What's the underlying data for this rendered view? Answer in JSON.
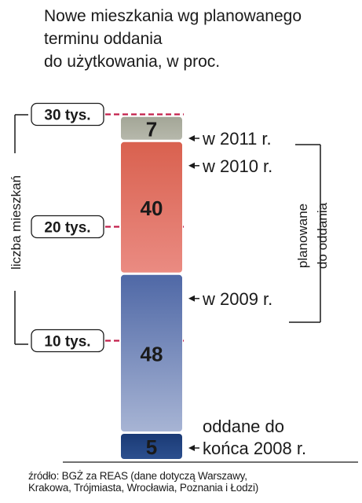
{
  "title": {
    "line1": "Nowe mieszkania wg planowanego",
    "line2": "terminu oddania",
    "line3": "do użytkowania, w proc."
  },
  "y_axis_label": "liczba mieszkań",
  "right_axis_label": {
    "line1": "planowane",
    "line2": "do oddania"
  },
  "source": {
    "line1": "źródło: BGŻ za REAS (dane dotyczą Warszawy,",
    "line2": "Krakowa, Trójmiasta, Wrocławia, Poznania i Łodzi)"
  },
  "chart_data": {
    "type": "bar",
    "stacked": true,
    "units": "proc.",
    "y_unit_label": "liczba mieszkań",
    "ylim": [
      0,
      32000
    ],
    "reference_lines": [
      {
        "value": 10000,
        "label": "10 tys."
      },
      {
        "value": 20000,
        "label": "20 tys."
      },
      {
        "value": 30000,
        "label": "30 tys."
      }
    ],
    "segments": [
      {
        "label": "oddane do końca 2008 r.",
        "value": 5,
        "color": "#1f3f7a"
      },
      {
        "label": "w 2009 r.",
        "value": 48,
        "color": "#5a72ad"
      },
      {
        "label": "w 2010 r.",
        "value": 40,
        "color": "#d96758"
      },
      {
        "label": "w 2011 r.",
        "value": 7,
        "color": "#a5a898"
      }
    ],
    "colors": {
      "reference_line": "#c21f4a",
      "bracket": "#1a1a1a"
    }
  }
}
